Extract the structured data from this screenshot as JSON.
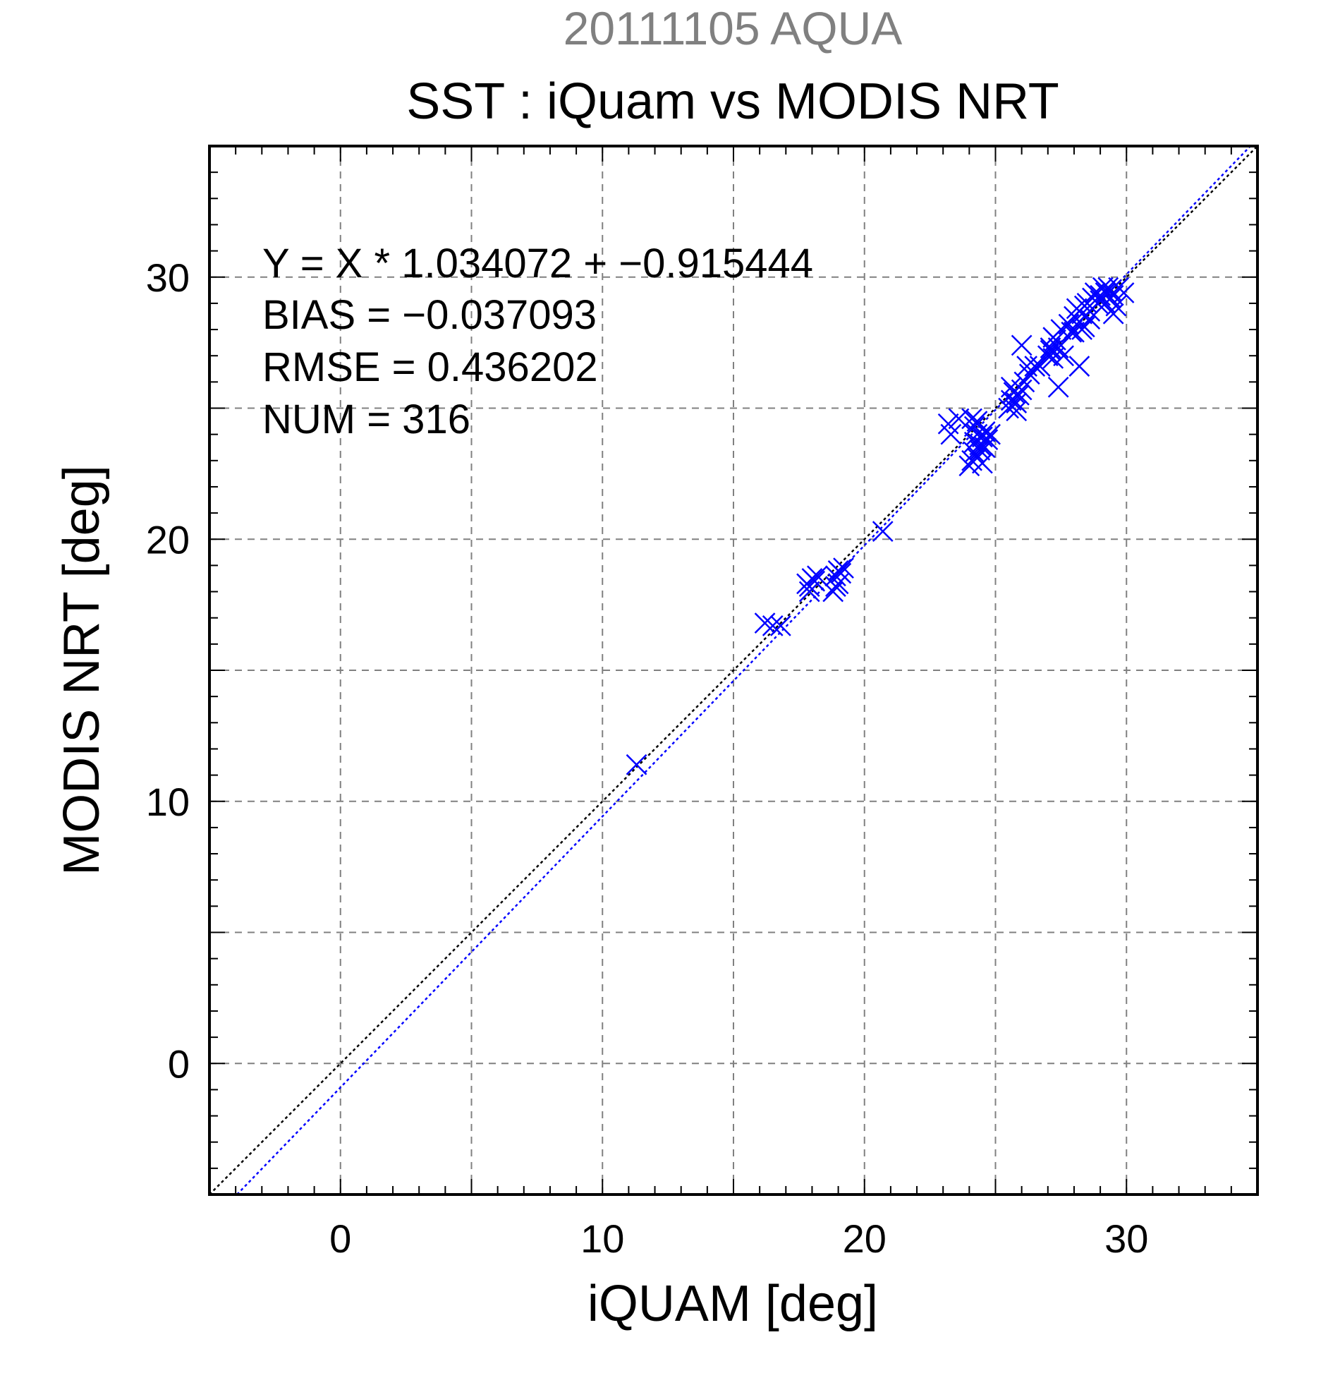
{
  "header": {
    "subtitle": "20111105 AQUA",
    "title": "SST : iQuam vs MODIS NRT"
  },
  "stats": {
    "fit": "Y = X * 1.034072 + −0.915444",
    "bias": "BIAS = −0.037093",
    "rmse": "RMSE = 0.436202",
    "num": "NUM = 316"
  },
  "chart_data": {
    "type": "scatter",
    "title": "SST : iQuam vs MODIS NRT",
    "subtitle": "20111105 AQUA",
    "xlabel": "iQUAM [deg]",
    "ylabel": "MODIS NRT [deg]",
    "xlim": [
      -5,
      35
    ],
    "ylim": [
      -5,
      35
    ],
    "xticks": [
      "0",
      "10",
      "20",
      "30"
    ],
    "yticks": [
      "0",
      "10",
      "20",
      "30"
    ],
    "grid": true,
    "subtitle_color": "#808080",
    "marker_color": "#0000ff",
    "marker": "x",
    "reference_line": {
      "slope": 1,
      "intercept": 0,
      "color": "#000000",
      "style": "dotted"
    },
    "fit_line": {
      "slope": 1.034072,
      "intercept": -0.915444,
      "color": "#0000ff",
      "style": "dotted"
    },
    "series": [
      {
        "points": [
          [
            11.3,
            11.4
          ],
          [
            16.2,
            16.8
          ],
          [
            16.5,
            16.7
          ],
          [
            16.8,
            16.7
          ],
          [
            17.8,
            18.3
          ],
          [
            17.9,
            18.2
          ],
          [
            18.0,
            18.5
          ],
          [
            18.1,
            18.4
          ],
          [
            18.2,
            18.6
          ],
          [
            17.9,
            18.0
          ],
          [
            18.8,
            18.0
          ],
          [
            18.9,
            18.2
          ],
          [
            18.9,
            18.6
          ],
          [
            19.0,
            18.8
          ],
          [
            19.1,
            18.7
          ],
          [
            19.2,
            18.9
          ],
          [
            19.0,
            18.3
          ],
          [
            20.7,
            20.3
          ],
          [
            23.2,
            24.4
          ],
          [
            23.3,
            24.0
          ],
          [
            23.6,
            24.6
          ],
          [
            24.0,
            22.8
          ],
          [
            24.1,
            23.0
          ],
          [
            24.2,
            23.3
          ],
          [
            24.2,
            23.7
          ],
          [
            24.3,
            24.0
          ],
          [
            24.2,
            24.3
          ],
          [
            24.3,
            24.5
          ],
          [
            24.4,
            23.6
          ],
          [
            24.5,
            23.9
          ],
          [
            24.6,
            24.1
          ],
          [
            24.5,
            22.9
          ],
          [
            24.4,
            23.4
          ],
          [
            24.6,
            23.5
          ],
          [
            24.7,
            23.8
          ],
          [
            24.8,
            24.0
          ],
          [
            24.1,
            24.6
          ],
          [
            24.3,
            23.1
          ],
          [
            25.5,
            25.0
          ],
          [
            25.6,
            25.3
          ],
          [
            25.7,
            25.6
          ],
          [
            25.8,
            25.2
          ],
          [
            25.9,
            25.5
          ],
          [
            26.0,
            25.7
          ],
          [
            26.1,
            26.0
          ],
          [
            25.6,
            25.8
          ],
          [
            25.8,
            24.9
          ],
          [
            26.0,
            27.4
          ],
          [
            26.2,
            26.6
          ],
          [
            26.3,
            26.3
          ],
          [
            26.5,
            26.6
          ],
          [
            26.7,
            26.6
          ],
          [
            27.0,
            27.0
          ],
          [
            27.1,
            27.3
          ],
          [
            27.2,
            26.9
          ],
          [
            27.3,
            27.6
          ],
          [
            27.4,
            27.3
          ],
          [
            27.5,
            28.0
          ],
          [
            27.4,
            25.8
          ],
          [
            27.6,
            27.0
          ],
          [
            27.2,
            27.7
          ],
          [
            27.1,
            27.2
          ],
          [
            27.8,
            28.2
          ],
          [
            27.9,
            27.9
          ],
          [
            28.0,
            28.5
          ],
          [
            28.1,
            28.8
          ],
          [
            28.2,
            28.3
          ],
          [
            28.3,
            28.6
          ],
          [
            28.2,
            26.6
          ],
          [
            28.4,
            28.9
          ],
          [
            28.0,
            27.9
          ],
          [
            28.3,
            28.0
          ],
          [
            28.5,
            29.0
          ],
          [
            28.6,
            28.7
          ],
          [
            28.7,
            29.2
          ],
          [
            28.8,
            29.4
          ],
          [
            28.9,
            29.0
          ],
          [
            29.0,
            29.3
          ],
          [
            29.1,
            29.6
          ],
          [
            29.2,
            29.4
          ],
          [
            29.3,
            29.6
          ],
          [
            29.4,
            29.5
          ],
          [
            29.5,
            29.3
          ],
          [
            29.6,
            28.9
          ],
          [
            29.7,
            29.6
          ],
          [
            29.5,
            28.6
          ],
          [
            29.9,
            29.4
          ],
          [
            28.6,
            28.4
          ],
          [
            28.4,
            28.1
          ],
          [
            29.0,
            29.1
          ],
          [
            29.2,
            29.0
          ],
          [
            29.4,
            29.2
          ]
        ]
      }
    ]
  }
}
